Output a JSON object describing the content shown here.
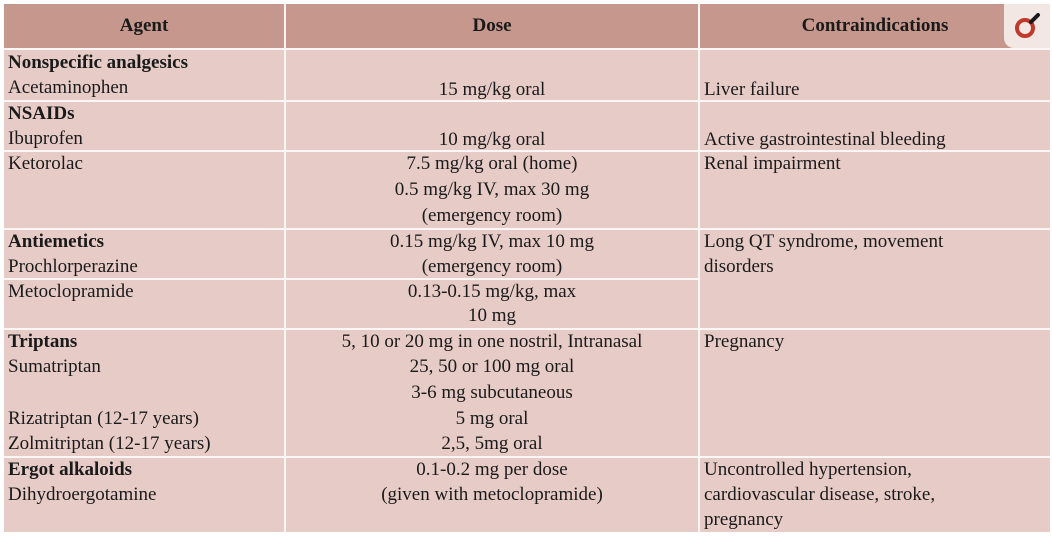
{
  "header": {
    "agent": "Agent",
    "dose": "Dose",
    "contraindications": "Contraindications"
  },
  "logo_icon": "venus-symbol-logo",
  "rows": [
    {
      "agent": [
        "Nonspecific analgesics",
        "Acetaminophen"
      ],
      "dose": [
        "15 mg/kg oral"
      ],
      "contra": [
        "Liver failure"
      ]
    },
    {
      "agent": [
        "NSAIDs",
        "Ibuprofen"
      ],
      "dose": [
        "10 mg/kg oral"
      ],
      "contra": [
        "Active gastrointestinal bleeding"
      ]
    },
    {
      "agent": [
        "Ketorolac"
      ],
      "dose": [
        "7.5 mg/kg oral (home)",
        "0.5 mg/kg IV, max 30 mg",
        "(emergency room)"
      ],
      "contra": [
        "Renal impairment"
      ]
    },
    {
      "agent": [
        "Antiemetics",
        "Prochlorperazine"
      ],
      "dose": [
        "0.15 mg/kg IV, max  10 mg",
        "(emergency room)"
      ],
      "contra": [
        "Long QT syndrome, movement",
        "disorders"
      ]
    },
    {
      "agent": [
        "Metoclopramide"
      ],
      "dose": [
        "0.13-0.15 mg/kg, max",
        "10 mg"
      ],
      "contra": []
    },
    {
      "agent": [
        "Triptans",
        "Sumatriptan",
        "",
        "Rizatriptan (12-17 years)",
        "Zolmitriptan (12-17 years)"
      ],
      "dose": [
        "5, 10 or 20 mg in one nostril, Intranasal",
        "25, 50 or 100 mg oral",
        "3-6 mg subcutaneous",
        "5 mg oral",
        "2,5, 5mg oral"
      ],
      "contra": [
        "Pregnancy"
      ]
    },
    {
      "agent": [
        "Ergot alkaloids",
        "Dihydroergotamine"
      ],
      "dose": [
        "0.1-0.2 mg per dose",
        "(given with metoclopramide)"
      ],
      "contra": [
        "Uncontrolled hypertension,",
        "cardiovascular disease, stroke,",
        "pregnancy"
      ]
    }
  ]
}
